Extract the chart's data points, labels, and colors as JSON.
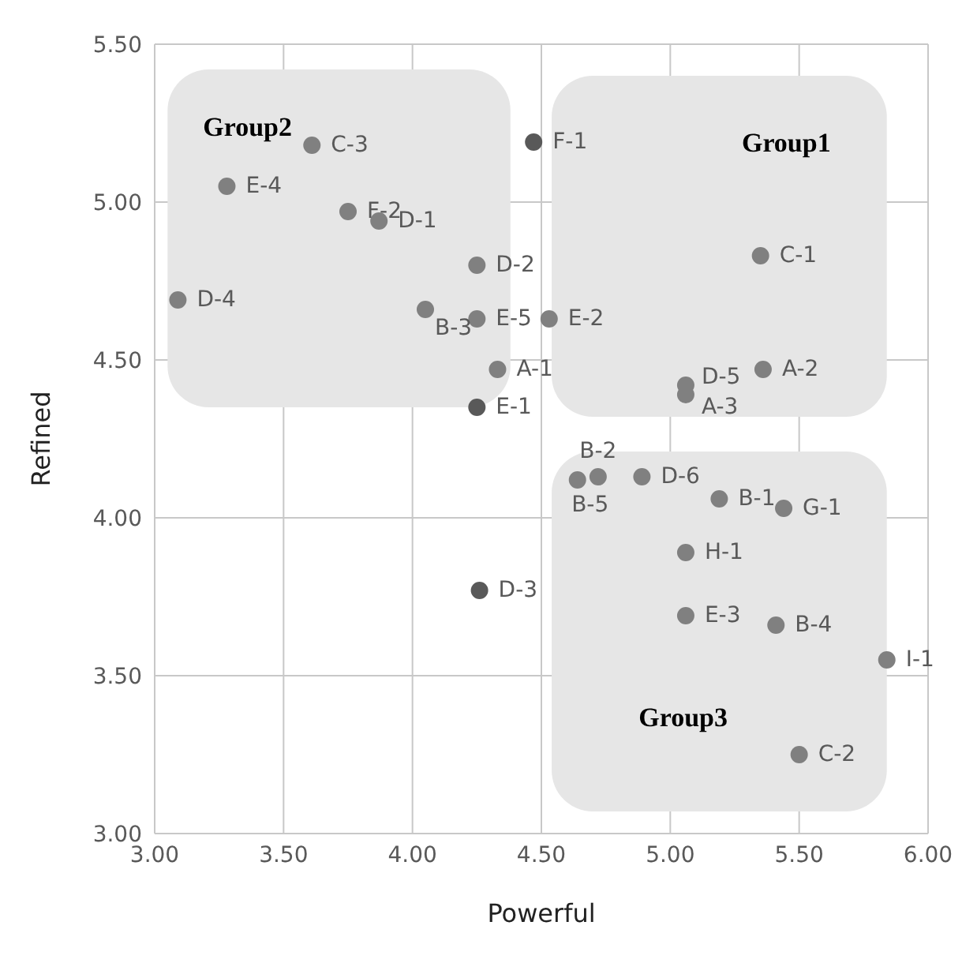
{
  "chart_data": {
    "type": "scatter",
    "xlabel": "Powerful",
    "ylabel": "Refined",
    "xlim": [
      3,
      6
    ],
    "xticks": [
      {
        "value": 3,
        "label": "3.00"
      },
      {
        "value": 3.5,
        "label": "3.50"
      },
      {
        "value": 4,
        "label": "4.00"
      },
      {
        "value": 4.5,
        "label": "4.50"
      },
      {
        "value": 5,
        "label": "5.00"
      },
      {
        "value": 5.5,
        "label": "5.50"
      },
      {
        "value": 6,
        "label": "6.00"
      }
    ],
    "ylim": [
      3,
      5.5
    ],
    "yticks": [
      {
        "value": 3,
        "label": "3.00"
      },
      {
        "value": 3.5,
        "label": "3.50"
      },
      {
        "value": 4,
        "label": "4.00"
      },
      {
        "value": 4.5,
        "label": "4.50"
      },
      {
        "value": 5,
        "label": "5.00"
      },
      {
        "value": 5.5,
        "label": "5.50"
      }
    ],
    "grid": true,
    "marker": "circle",
    "x": [
      3.61,
      3.28,
      3.75,
      3.87,
      4.25,
      3.09,
      4.05,
      4.25,
      4.33,
      4.25,
      4.47,
      5.35,
      4.53,
      5.36,
      5.06,
      5.06,
      4.64,
      4.72,
      4.89,
      5.19,
      5.44,
      5.06,
      4.26,
      5.06,
      5.41,
      5.84,
      5.5
    ],
    "values": [
      5.18,
      5.05,
      4.97,
      4.94,
      4.8,
      4.69,
      4.66,
      4.63,
      4.47,
      4.35,
      5.19,
      4.83,
      4.63,
      4.47,
      4.42,
      4.39,
      4.12,
      4.13,
      4.13,
      4.06,
      4.03,
      3.89,
      3.77,
      3.69,
      3.66,
      3.55,
      3.25
    ],
    "colors": [
      "#808080",
      "#808080",
      "#808080",
      "#808080",
      "#808080",
      "#808080",
      "#808080",
      "#808080",
      "#808080",
      "#595959",
      "#595959",
      "#808080",
      "#808080",
      "#808080",
      "#808080",
      "#808080",
      "#808080",
      "#808080",
      "#808080",
      "#808080",
      "#808080",
      "#808080",
      "#595959",
      "#808080",
      "#808080",
      "#808080",
      "#808080"
    ],
    "value_labels": [
      "C-3",
      "E-4",
      "F-2",
      "D-1",
      "D-2",
      "D-4",
      "B-3",
      "E-5",
      "A-1",
      "E-1",
      "F-1",
      "C-1",
      "E-2",
      "A-2",
      "D-5",
      "A-3",
      "B-5",
      "B-2",
      "D-6",
      "B-1",
      "G-1",
      "H-1",
      "D-3",
      "E-3",
      "B-4",
      "I-1",
      "C-2"
    ],
    "annotations": [
      "Group2",
      "Group1",
      "Group3"
    ]
  }
}
